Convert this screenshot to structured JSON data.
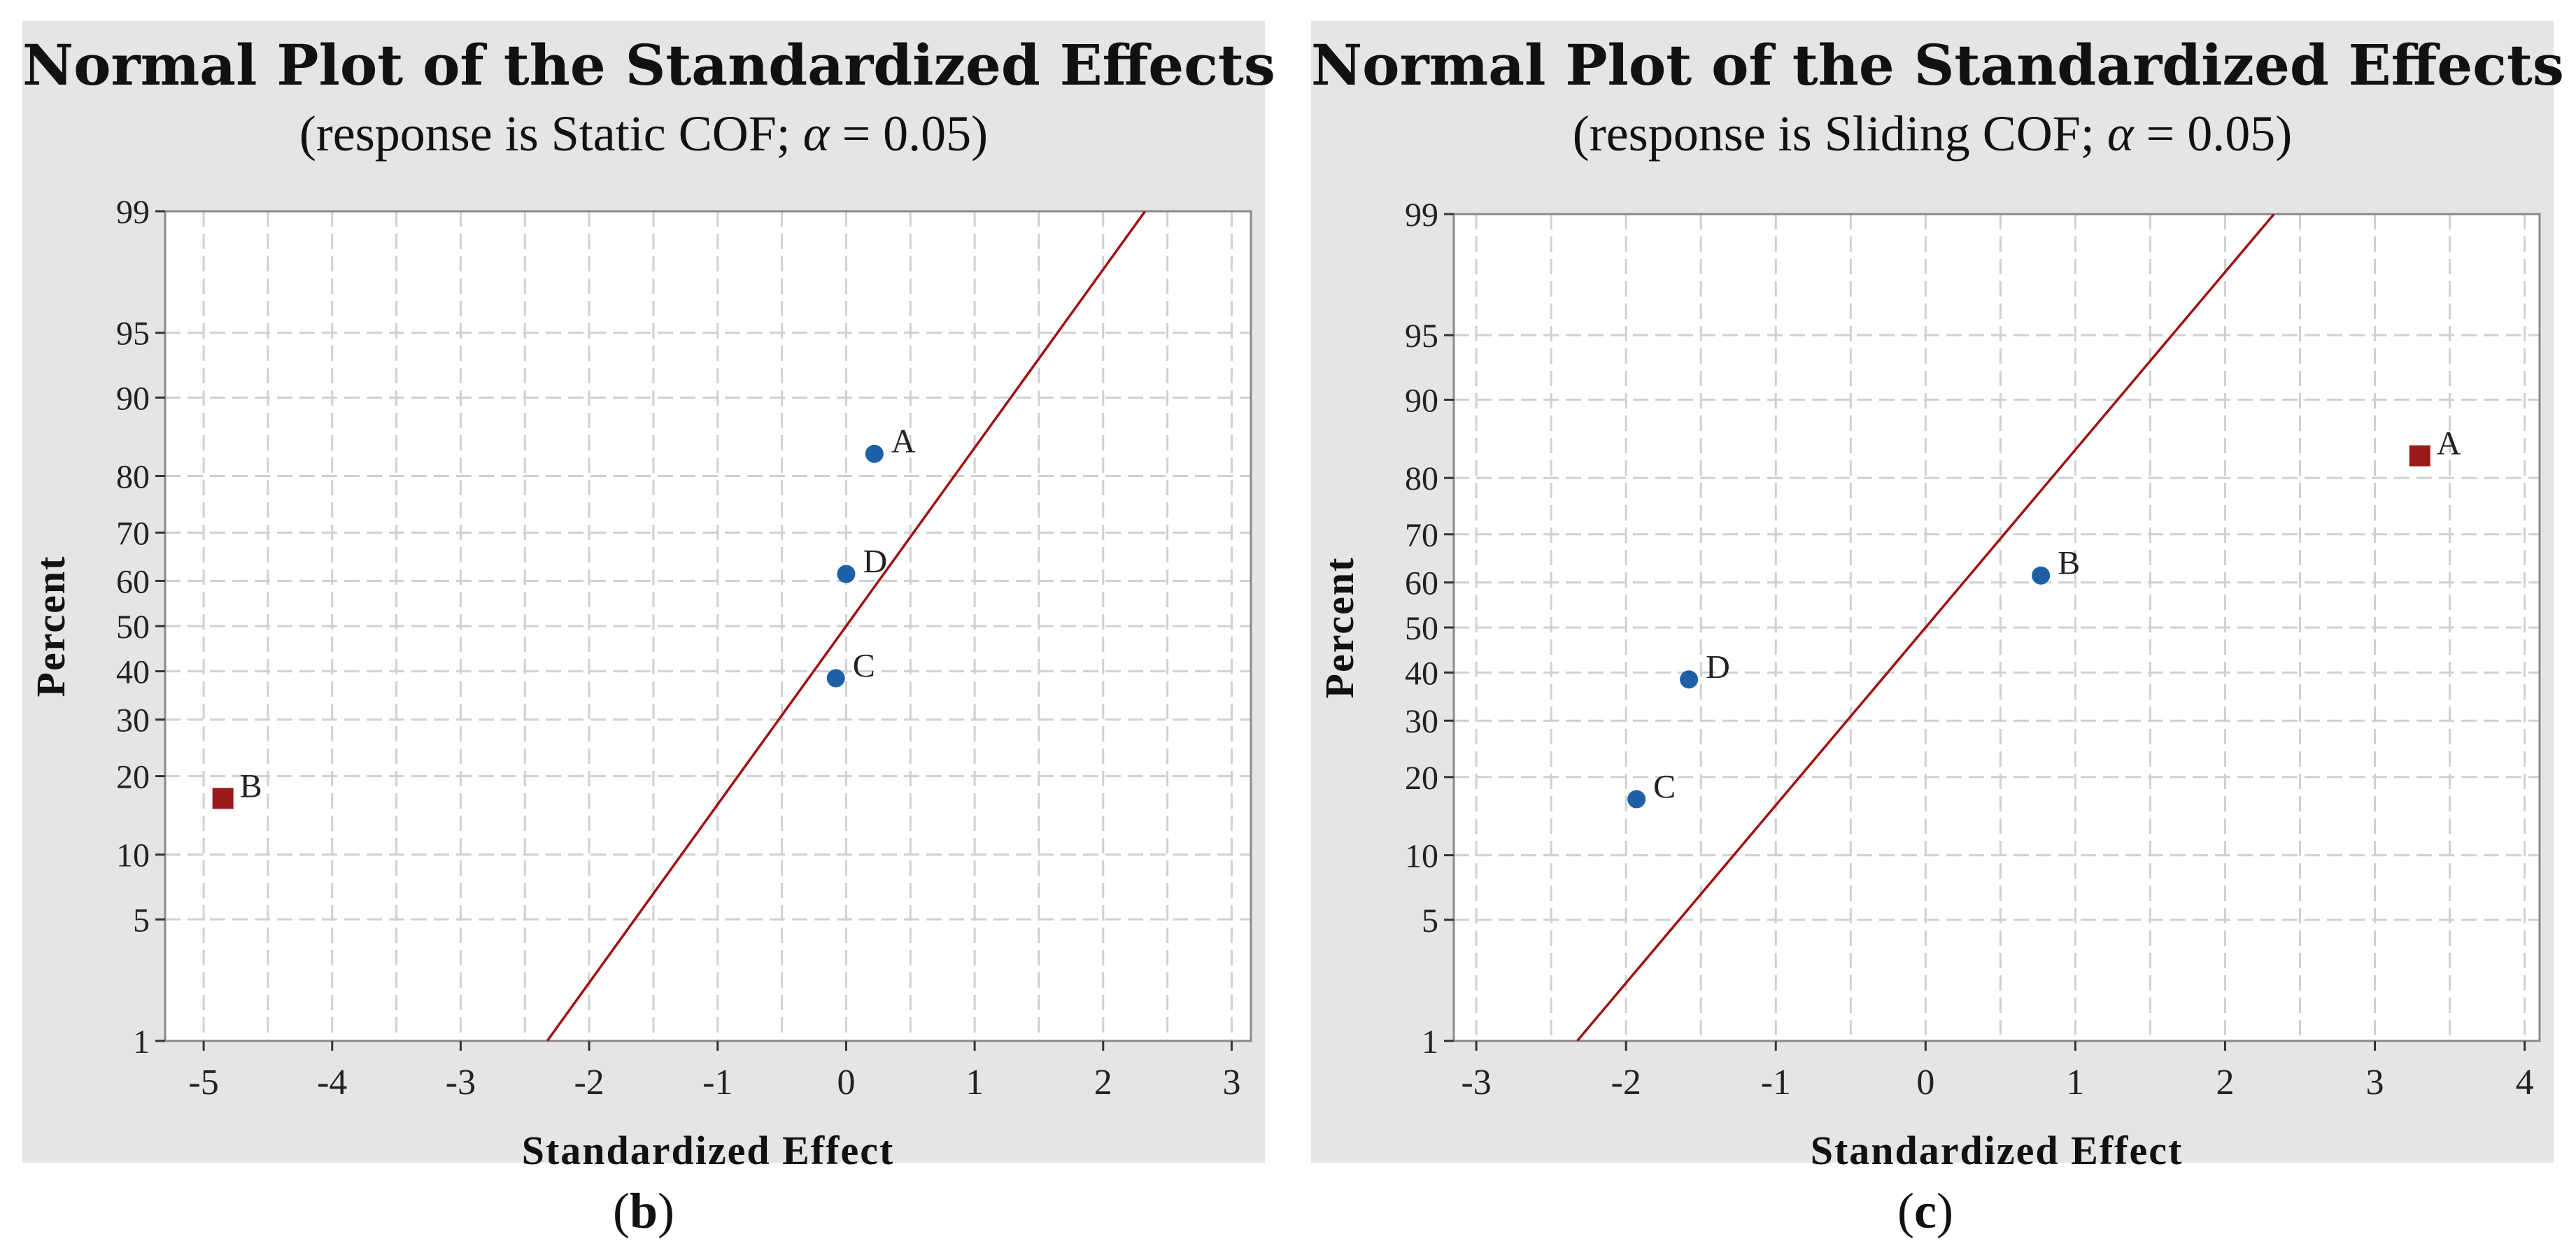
{
  "colors": {
    "panel_bg": "#e5e5e5",
    "plot_bg": "#ffffff",
    "grid": "#d0d0d0",
    "fit_line": "#a01010",
    "significant": "#9b1b1b",
    "not_significant": "#1f5fa8"
  },
  "chart_data": [
    {
      "id": "b",
      "type": "scatter",
      "title": "Normal Plot of the Standardized Effects",
      "subtitle_prefix": "(response is Static COF; ",
      "alpha_symbol": "α",
      "alpha_value": " = 0.05)",
      "xlabel": "Standardized Effect",
      "ylabel": "Percent",
      "xlim": [
        -5.3,
        3.15
      ],
      "x_ticks": [
        -5,
        -4,
        -3,
        -2,
        -1,
        0,
        1,
        2,
        3
      ],
      "y_ticks": [
        1,
        5,
        10,
        20,
        30,
        40,
        50,
        60,
        70,
        80,
        90,
        95,
        99
      ],
      "ylim_percent": [
        1,
        99
      ],
      "fit_line": {
        "mean": 0.0,
        "sd": 1.0
      },
      "points": [
        {
          "label": "A",
          "x": 0.22,
          "y": 83.3,
          "significant": false
        },
        {
          "label": "D",
          "x": 0.0,
          "y": 61.5,
          "significant": false
        },
        {
          "label": "C",
          "x": -0.08,
          "y": 38.5,
          "significant": false
        },
        {
          "label": "B",
          "x": -4.85,
          "y": 16.7,
          "significant": true
        }
      ],
      "caption_letter": "b"
    },
    {
      "id": "c",
      "type": "scatter",
      "title": "Normal Plot of the Standardized Effects",
      "subtitle_prefix": "(response is Sliding COF; ",
      "alpha_symbol": "α",
      "alpha_value": " = 0.05)",
      "xlabel": "Standardized Effect",
      "ylabel": "Percent",
      "xlim": [
        -3.15,
        4.1
      ],
      "x_ticks": [
        -3,
        -2,
        -1,
        0,
        1,
        2,
        3,
        4
      ],
      "y_ticks": [
        1,
        5,
        10,
        20,
        30,
        40,
        50,
        60,
        70,
        80,
        90,
        95,
        99
      ],
      "ylim_percent": [
        1,
        99
      ],
      "fit_line": {
        "mean": 0.0,
        "sd": 1.0
      },
      "points": [
        {
          "label": "A",
          "x": 3.3,
          "y": 83.3,
          "significant": true
        },
        {
          "label": "B",
          "x": 0.77,
          "y": 61.5,
          "significant": false
        },
        {
          "label": "D",
          "x": -1.58,
          "y": 38.5,
          "significant": false
        },
        {
          "label": "C",
          "x": -1.93,
          "y": 16.7,
          "significant": false
        }
      ],
      "caption_letter": "c"
    }
  ]
}
